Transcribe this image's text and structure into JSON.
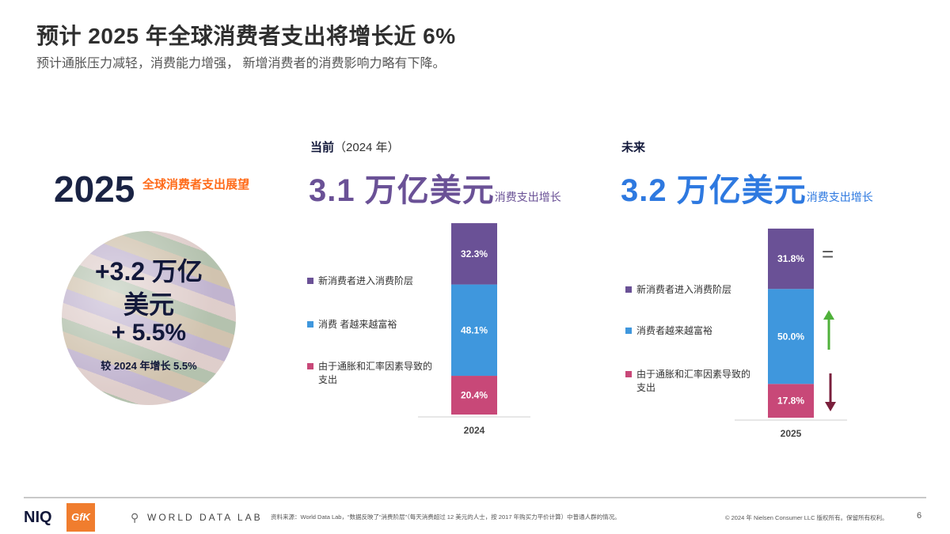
{
  "header": {
    "title": "预计 2025 年全球消费者支出将增长近 6%",
    "subtitle": "预计通胀压力减轻，消费能力增强， 新增消费者的消费影响力略有下降。"
  },
  "left": {
    "year": "2025",
    "year_label": "全球消费者支出展望",
    "circle_line1": "+3.2 万亿",
    "circle_line2": "美元",
    "circle_line3": "+ 5.5%",
    "circle_small": "较 2024 年增长 5.5%"
  },
  "current": {
    "head": "当前",
    "head_paren": "（2024 年）",
    "big_value": "3.1 万亿美元",
    "big_sub": "消费支出增长",
    "legend": [
      {
        "label": "新消费者进入消费阶层",
        "color": "#6a5196"
      },
      {
        "label": "消费 者越来越富裕",
        "color": "#3f97dd"
      },
      {
        "label": "由于通胀和汇率因素导致的支出",
        "color": "#c84878"
      }
    ]
  },
  "future": {
    "head": "未来",
    "big_value": "3.2 万亿美元",
    "big_sub": "消费支出增长",
    "legend": [
      {
        "label": "新消费者进入消费阶层",
        "color": "#6a5196"
      },
      {
        "label": "消费者越来越富裕",
        "color": "#3f97dd"
      },
      {
        "label": "由于通胀和汇率因素导致的支出",
        "color": "#c84878"
      }
    ],
    "indicators": [
      "=",
      "up-arrow-icon",
      "down-arrow-icon"
    ]
  },
  "chart_data": [
    {
      "type": "bar",
      "stacked": true,
      "categories": [
        "2024"
      ],
      "series": [
        {
          "name": "由于通胀和汇率因素导致的支出",
          "values": [
            20.4
          ],
          "labels": [
            "20.4%"
          ],
          "color": "#c84878"
        },
        {
          "name": "消费 者越来越富裕",
          "values": [
            48.1
          ],
          "labels": [
            "48.1%"
          ],
          "color": "#3f97dd"
        },
        {
          "name": "新消费者进入消费阶层",
          "values": [
            32.3
          ],
          "labels": [
            "32.3%"
          ],
          "color": "#6a5196"
        }
      ],
      "ylim": [
        0,
        100
      ]
    },
    {
      "type": "bar",
      "stacked": true,
      "categories": [
        "2025"
      ],
      "series": [
        {
          "name": "由于通胀和汇率因素导致的支出",
          "values": [
            17.8
          ],
          "labels": [
            "17.8%"
          ],
          "color": "#c84878"
        },
        {
          "name": "消费者越来越富裕",
          "values": [
            50.0
          ],
          "labels": [
            "50.0%"
          ],
          "color": "#3f97dd"
        },
        {
          "name": "新消费者进入消费阶层",
          "values": [
            31.8
          ],
          "labels": [
            "31.8%"
          ],
          "color": "#6a5196"
        }
      ],
      "ylim": [
        0,
        100
      ]
    }
  ],
  "footer": {
    "logo_niq": "NIQ",
    "logo_gfk": "GfK",
    "wdl": "WORLD DATA LAB",
    "source": "资料来源：World Data Lab，“数据反映了“消费阶层”（每天消费超过 12 美元的人士，按 2017 年购买力平价计算）中普通人群的情况。",
    "copyright": "© 2024 年 Nielsen Consumer LLC 版权所有。保留所有权利。",
    "page": "6"
  }
}
